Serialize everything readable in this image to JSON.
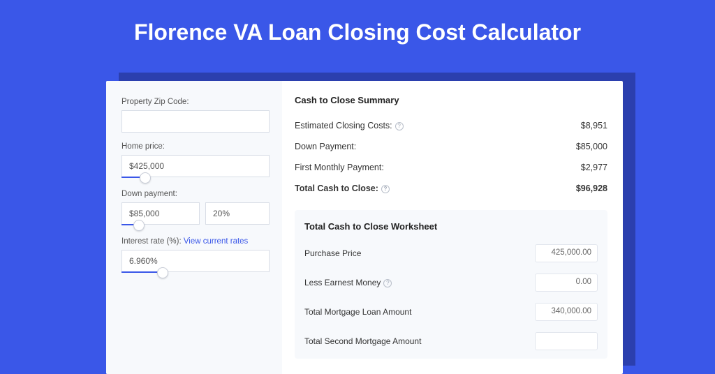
{
  "page_title": "Florence VA Loan Closing Cost Calculator",
  "colors": {
    "accent": "#3a57e8",
    "page_bg": "#3a57e8",
    "card_shadow": "#2b3fae"
  },
  "inputs": {
    "zip_label": "Property Zip Code:",
    "zip_value": "",
    "home_price_label": "Home price:",
    "home_price_value": "$425,000",
    "home_price_slider_pct": 16,
    "down_payment_label": "Down payment:",
    "down_payment_value": "$85,000",
    "down_payment_pct": "20%",
    "down_payment_slider_pct": 22,
    "interest_label_prefix": "Interest rate (%): ",
    "interest_link": "View current rates",
    "interest_value": "6.960%",
    "interest_slider_pct": 28
  },
  "summary": {
    "title": "Cash to Close Summary",
    "rows": [
      {
        "label": "Estimated Closing Costs:",
        "help": true,
        "value": "$8,951",
        "bold": false
      },
      {
        "label": "Down Payment:",
        "help": false,
        "value": "$85,000",
        "bold": false
      },
      {
        "label": "First Monthly Payment:",
        "help": false,
        "value": "$2,977",
        "bold": false
      },
      {
        "label": "Total Cash to Close:",
        "help": true,
        "value": "$96,928",
        "bold": true
      }
    ]
  },
  "worksheet": {
    "title": "Total Cash to Close Worksheet",
    "rows": [
      {
        "label": "Purchase Price",
        "help": false,
        "value": "425,000.00"
      },
      {
        "label": "Less Earnest Money",
        "help": true,
        "value": "0.00"
      },
      {
        "label": "Total Mortgage Loan Amount",
        "help": false,
        "value": "340,000.00"
      },
      {
        "label": "Total Second Mortgage Amount",
        "help": false,
        "value": ""
      }
    ]
  }
}
